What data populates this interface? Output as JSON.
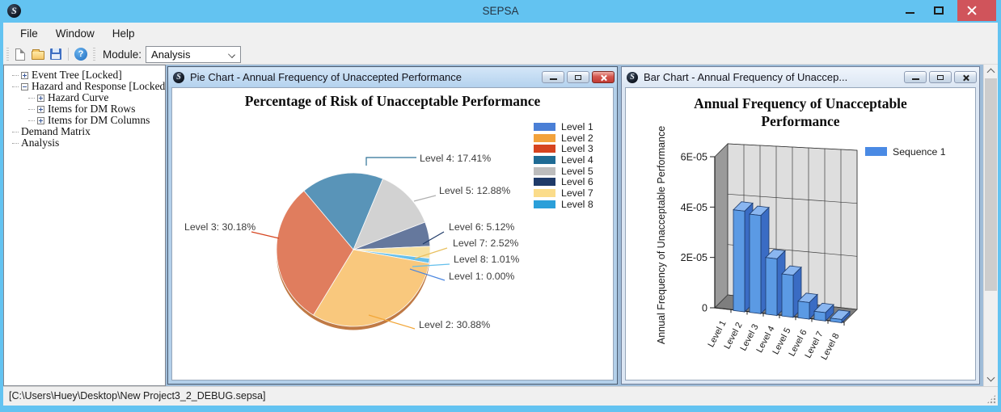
{
  "app": {
    "title": "SEPSA"
  },
  "menu": {
    "items": [
      "File",
      "Window",
      "Help"
    ]
  },
  "toolbar": {
    "module_label": "Module:",
    "module_value": "Analysis",
    "buttons": [
      "new-file",
      "open-file",
      "save-file",
      "help"
    ]
  },
  "tree": {
    "items": [
      {
        "label": "Event Tree [Locked]",
        "expander": "plus",
        "indent": 0
      },
      {
        "label": "Hazard and Response [Locked]",
        "expander": "minus",
        "indent": 0
      },
      {
        "label": "Hazard Curve",
        "expander": "plus",
        "indent": 1
      },
      {
        "label": "Items for DM Rows",
        "expander": "plus",
        "indent": 1
      },
      {
        "label": "Items for DM Columns",
        "expander": "plus",
        "indent": 1
      },
      {
        "label": "Demand Matrix",
        "expander": "none",
        "indent": 0
      },
      {
        "label": "Analysis",
        "expander": "none",
        "indent": 0
      }
    ]
  },
  "pie_window": {
    "title": "Pie Chart - Annual Frequency of Unaccepted Performance",
    "state": "active"
  },
  "bar_window": {
    "title": "Bar Chart - Annual Frequency of Unaccep...",
    "state": "inactive"
  },
  "statusbar": {
    "text": "[C:\\Users\\Huey\\Desktop\\New Project3_2_DEBUG.sepsa]"
  },
  "chart_data": [
    {
      "type": "pie",
      "title": "Percentage of Risk of Unacceptable Performance",
      "start_angle_deg": -40,
      "legend_position": "right",
      "legend": [
        {
          "label": "Level 1",
          "color": "#4a7fd6"
        },
        {
          "label": "Level 2",
          "color": "#f2a23c"
        },
        {
          "label": "Level 3",
          "color": "#d6441f"
        },
        {
          "label": "Level 4",
          "color": "#1f6b94"
        },
        {
          "label": "Level 5",
          "color": "#bdbdbd"
        },
        {
          "label": "Level 6",
          "color": "#1f3a68"
        },
        {
          "label": "Level 7",
          "color": "#fbdc8a"
        },
        {
          "label": "Level 8",
          "color": "#2b9fd9"
        }
      ],
      "slices": [
        {
          "label": "Level 4",
          "pct": 17.41,
          "color": "#5994b8",
          "leader_color": "#2e7296",
          "data_label": "Level 4: 17.41%"
        },
        {
          "label": "Level 5",
          "pct": 12.88,
          "color": "#d2d2d2",
          "leader_color": "#b0b0b0",
          "data_label": "Level 5: 12.88%"
        },
        {
          "label": "Level 6",
          "pct": 5.12,
          "color": "#65789d",
          "leader_color": "#1f3a68",
          "data_label": "Level 6: 5.12%"
        },
        {
          "label": "Level 7",
          "pct": 2.52,
          "color": "#f8e1a0",
          "leader_color": "#e8c060",
          "data_label": "Level 7: 2.52%"
        },
        {
          "label": "Level 8",
          "pct": 1.01,
          "color": "#66c0ec",
          "leader_color": "#63bfec",
          "data_label": "Level 8: 1.01%"
        },
        {
          "label": "Level 1",
          "pct": 0.0,
          "color": "#4a86e0",
          "leader_color": "#4a86e0",
          "data_label": "Level 1: 0.00%"
        },
        {
          "label": "Level 2",
          "pct": 30.88,
          "color": "#f9c87d",
          "leader_color": "#f2a638",
          "data_label": "Level 2: 30.88%"
        },
        {
          "label": "Level 3",
          "pct": 30.18,
          "color": "#e07d5e",
          "leader_color": "#d6441f",
          "data_label": "Level 3: 30.18%"
        }
      ]
    },
    {
      "type": "bar",
      "style": "3d",
      "title": "Annual Frequency of Unacceptable Performance",
      "xlabel": "",
      "ylabel": "Annual Frequency of Unacceptable Performance",
      "categories": [
        "Level 1",
        "Level 2",
        "Level 3",
        "Level 4",
        "Level 5",
        "Level 6",
        "Level 7",
        "Level 8"
      ],
      "series": [
        {
          "name": "Sequence 1",
          "values": [
            0,
            4e-05,
            3.9e-05,
            2.25e-05,
            1.67e-05,
            6.6e-06,
            3.3e-06,
            1.3e-06
          ]
        }
      ],
      "ylim": [
        0,
        6e-05
      ],
      "yticks": [
        {
          "v": 0,
          "label": "0"
        },
        {
          "v": 2e-05,
          "label": "2E-05"
        },
        {
          "v": 4e-05,
          "label": "4E-05"
        },
        {
          "v": 6e-05,
          "label": "6E-05"
        }
      ],
      "bar_color": "#5b9ae4",
      "legend_position": "right",
      "grid": true
    }
  ]
}
